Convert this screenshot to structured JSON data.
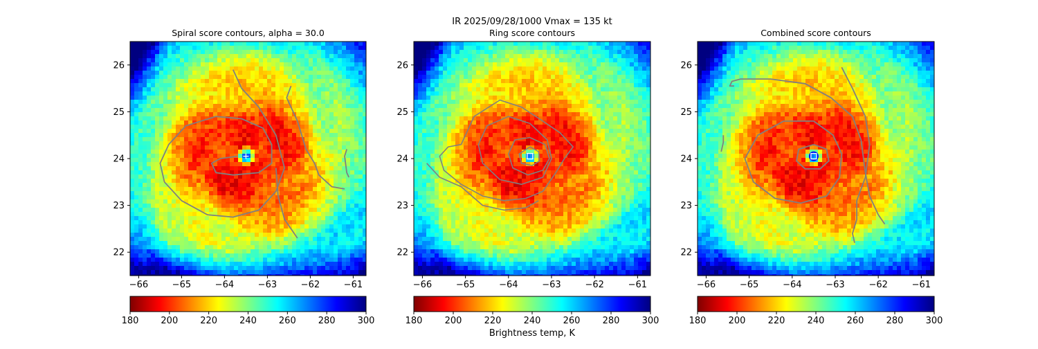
{
  "figure": {
    "suptitle_line1": "IR  2025/09/28/1000    Vmax = 135 kt",
    "colorbar_label": "Brightness temp, K"
  },
  "colormap": {
    "name": "jet",
    "vmin": 180,
    "vmax": 300,
    "stops": [
      "#800000",
      "#ff0000",
      "#ff8000",
      "#ffff00",
      "#80ff80",
      "#00ffff",
      "#0080ff",
      "#0000ff",
      "#000080"
    ],
    "ticks": [
      180,
      200,
      220,
      240,
      260,
      280,
      300
    ],
    "tick_labels": [
      "180",
      "200",
      "220",
      "240",
      "260",
      "280",
      "300"
    ]
  },
  "colors": {
    "contour": "#808080",
    "center_marker": "#ffffff",
    "eye_marker": "#0000ff"
  },
  "chart_data": [
    {
      "type": "heatmap",
      "title": "Spiral score contours, alpha = 30.0",
      "xlim": [
        -66.2,
        -60.7
      ],
      "ylim": [
        21.5,
        26.5
      ],
      "x_ticks": [
        -66,
        -65,
        -64,
        -63,
        -62,
        -61
      ],
      "x_tick_labels": [
        "−66",
        "−65",
        "−64",
        "−63",
        "−62",
        "−61"
      ],
      "y_ticks": [
        22,
        23,
        24,
        25,
        26
      ],
      "y_tick_labels": [
        "22",
        "23",
        "24",
        "25",
        "26"
      ],
      "storm_center": [
        -63.5,
        24.05
      ],
      "marker": "plus",
      "contours": "spiral"
    },
    {
      "type": "heatmap",
      "title": "Ring score contours",
      "xlim": [
        -66.2,
        -60.7
      ],
      "ylim": [
        21.5,
        26.5
      ],
      "x_ticks": [
        -66,
        -65,
        -64,
        -63,
        -62,
        -61
      ],
      "x_tick_labels": [
        "−66",
        "−65",
        "−64",
        "−63",
        "−62",
        "−61"
      ],
      "y_ticks": [
        22,
        23,
        24,
        25,
        26
      ],
      "y_tick_labels": [
        "22",
        "23",
        "24",
        "25",
        "26"
      ],
      "storm_center": [
        -63.5,
        24.05
      ],
      "marker": "square",
      "contours": "ring"
    },
    {
      "type": "heatmap",
      "title": "Combined score contours",
      "xlim": [
        -66.2,
        -60.7
      ],
      "ylim": [
        21.5,
        26.5
      ],
      "x_ticks": [
        -66,
        -65,
        -64,
        -63,
        -62,
        -61
      ],
      "x_tick_labels": [
        "−66",
        "−65",
        "−64",
        "−63",
        "−62",
        "−61"
      ],
      "y_ticks": [
        22,
        23,
        24,
        25,
        26
      ],
      "y_tick_labels": [
        "22",
        "23",
        "24",
        "25",
        "26"
      ],
      "storm_center": [
        -63.5,
        24.05
      ],
      "marker": "square",
      "contours": "combined"
    }
  ]
}
